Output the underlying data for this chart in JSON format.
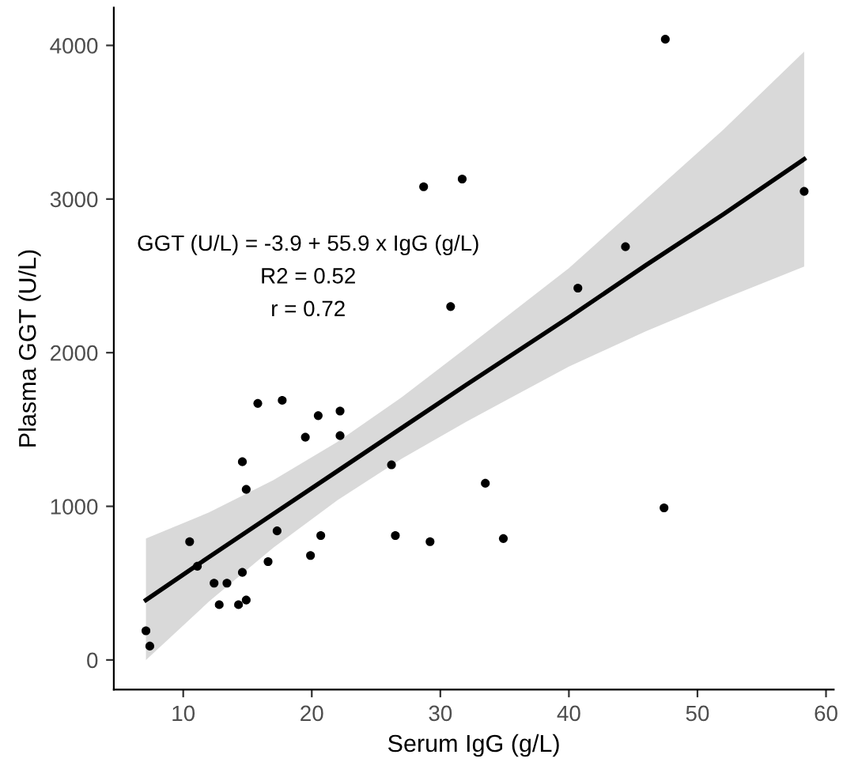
{
  "chart_data": {
    "type": "scatter",
    "xlabel": "Serum IgG (g/L)",
    "ylabel": "Plasma GGT (U/L)",
    "xlim": [
      4.6,
      60.6
    ],
    "ylim": [
      -193,
      4246
    ],
    "xticks": [
      10,
      20,
      30,
      40,
      50,
      60
    ],
    "yticks": [
      0,
      1000,
      2000,
      3000,
      4000
    ],
    "grid": false,
    "annotations": [
      "GGT (U/L) = -3.9 + 55.9 x IgG (g/L)",
      "R2 = 0.52",
      "r = 0.72"
    ],
    "series": [
      {
        "color": "#000000",
        "marker": "circle",
        "x": [
          7.1,
          7.4,
          10.5,
          11.1,
          12.4,
          12.8,
          13.4,
          14.3,
          14.6,
          14.6,
          14.9,
          14.9,
          15.8,
          16.6,
          17.3,
          17.7,
          19.5,
          19.9,
          20.5,
          20.7,
          22.2,
          22.2,
          26.2,
          26.5,
          28.7,
          29.2,
          30.8,
          31.7,
          33.5,
          34.9,
          40.7,
          44.4,
          47.4,
          47.5,
          58.3
        ],
        "values": [
          190,
          90,
          770,
          610,
          500,
          360,
          500,
          360,
          570,
          1290,
          390,
          1110,
          1670,
          640,
          840,
          1690,
          1450,
          680,
          1590,
          810,
          1620,
          1460,
          1270,
          810,
          3080,
          770,
          2300,
          3130,
          1150,
          790,
          2420,
          2690,
          990,
          4040,
          3050
        ]
      },
      {
        "type": "line",
        "color": "#000000",
        "marker": "none",
        "x": [
          7.1,
          12,
          17,
          22,
          27,
          32,
          40,
          46,
          52,
          58.3
        ],
        "values": [
          390,
          670,
          950,
          1230,
          1510,
          1790,
          2230,
          2570,
          2900,
          3260
        ],
        "lower": [
          0,
          380,
          730,
          1040,
          1310,
          1550,
          1910,
          2140,
          2350,
          2560
        ],
        "upper": [
          790,
          960,
          1170,
          1420,
          1710,
          2030,
          2550,
          3000,
          3450,
          3960
        ]
      }
    ]
  }
}
